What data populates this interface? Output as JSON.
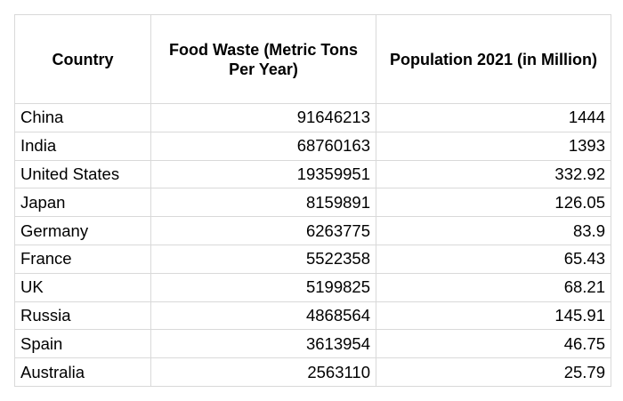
{
  "chart_data": {
    "type": "table",
    "columns": [
      "Country",
      "Food Waste (Metric Tons Per Year)",
      "Population 2021 (in Million)"
    ],
    "rows": [
      [
        "China",
        "91646213",
        "1444"
      ],
      [
        "India",
        "68760163",
        "1393"
      ],
      [
        "United States",
        "19359951",
        "332.92"
      ],
      [
        "Japan",
        "8159891",
        "126.05"
      ],
      [
        "Germany",
        "6263775",
        "83.9"
      ],
      [
        "France",
        "5522358",
        "65.43"
      ],
      [
        "UK",
        "5199825",
        "68.21"
      ],
      [
        "Russia",
        "4868564",
        "145.91"
      ],
      [
        "Spain",
        "3613954",
        "46.75"
      ],
      [
        "Australia",
        "2563110",
        "25.79"
      ]
    ]
  },
  "colors": {
    "grid_line": "#d9d9d9",
    "text": "#000000",
    "background": "#ffffff"
  }
}
